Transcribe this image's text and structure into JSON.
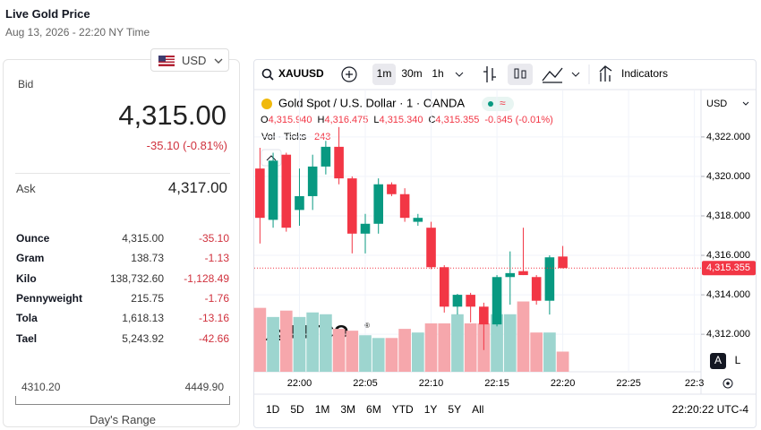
{
  "header": {
    "title": "Live Gold Price",
    "timestamp": "Aug 13, 2026 - 22:20 NY Time"
  },
  "currency": "USD",
  "bid": {
    "label": "Bid",
    "value": "4,315.00",
    "change": "-35.10 (-0.81%)"
  },
  "ask": {
    "label": "Ask",
    "value": "4,317.00"
  },
  "units": {
    "rows": [
      [
        "Ounce",
        "4,315.00",
        "-35.10"
      ],
      [
        "Gram",
        "138.73",
        "-1.13"
      ],
      [
        "Kilo",
        "138,732.60",
        "-1,128.49"
      ],
      [
        "Pennyweight",
        "215.75",
        "-1.76"
      ],
      [
        "Tola",
        "1,618.13",
        "-13.16"
      ],
      [
        "Tael",
        "5,243.92",
        "-42.66"
      ]
    ]
  },
  "range": {
    "low": "4310.20",
    "high": "4449.90",
    "label": "Day's Range"
  },
  "toolbar": {
    "symbol": "XAUUSD",
    "intervals": [
      "1m",
      "30m",
      "1h"
    ],
    "indicators": "Indicators"
  },
  "legend": {
    "title": "Gold Spot / U.S. Dollar · 1 · OANDA",
    "ohlc": [
      {
        "key": "O",
        "value": "4,315.940"
      },
      {
        "key": "H",
        "value": "4,316.475"
      },
      {
        "key": "L",
        "value": "4,315.340"
      },
      {
        "key": "C",
        "value": "4,315.355"
      }
    ],
    "change": "-0.645 (-0.01%)",
    "volume_label": "Vol · Ticks",
    "volume_value": "243"
  },
  "price_unit": "USD",
  "logo": "KITCO",
  "logo_mark": "®",
  "scale_buttons": [
    "A",
    "L"
  ],
  "chart_data": {
    "type": "candlestick",
    "categories": [
      null,
      null,
      null,
      "22:00",
      null,
      null,
      null,
      null,
      "22:05",
      null,
      null,
      null,
      null,
      "22:10",
      null,
      null,
      null,
      null,
      "22:15",
      null,
      null,
      null,
      null,
      "22:20",
      null,
      null,
      null,
      null,
      "22:25",
      null,
      null,
      null,
      null,
      "22:3"
    ],
    "open": [
      4320.4,
      4317.8,
      4321.1,
      4318.3,
      4319.0,
      4320.5,
      4321.5,
      4319.9,
      4317.1,
      4317.6,
      4319.6,
      4319.1,
      4317.7,
      4317.4,
      4315.4,
      4313.4,
      4314.0,
      4313.4,
      4312.5,
      4314.9,
      4315.2,
      4314.9,
      4313.7,
      4315.94,
      null,
      null,
      null,
      null,
      null,
      null,
      null,
      null,
      null,
      null
    ],
    "high": [
      4321.45,
      4321.2,
      4321.2,
      4320.4,
      4321.1,
      4321.8,
      4322.5,
      4320.0,
      4318.1,
      4319.9,
      4319.7,
      4319.4,
      4318.1,
      4317.7,
      4315.5,
      4314.05,
      4314.1,
      4313.6,
      4315.0,
      4316.2,
      4317.4,
      4315.0,
      4316.0,
      4316.475,
      null,
      null,
      null,
      null,
      null,
      null,
      null,
      null,
      null,
      null
    ],
    "low": [
      4316.6,
      4317.4,
      4317.2,
      4317.5,
      4318.3,
      4320.1,
      4319.6,
      4316.1,
      4316.1,
      4317.1,
      4319.0,
      4317.7,
      4317.5,
      4315.3,
      4313.1,
      4313.0,
      4312.6,
      4311.2,
      4312.4,
      4313.5,
      4315.0,
      4313.5,
      4313.0,
      4315.34,
      null,
      null,
      null,
      null,
      null,
      null,
      null,
      null,
      null,
      null
    ],
    "close": [
      4317.9,
      4320.8,
      4317.4,
      4319.0,
      4320.5,
      4321.5,
      4319.9,
      4317.1,
      4317.6,
      4319.6,
      4319.1,
      4317.9,
      4317.9,
      4315.4,
      4313.4,
      4314.0,
      4313.4,
      4312.5,
      4314.9,
      4315.1,
      4315.0,
      4313.7,
      4315.9,
      4315.355,
      null,
      null,
      null,
      null,
      null,
      null,
      null,
      null,
      null,
      null
    ],
    "volume": [
      770,
      660,
      737,
      660,
      715,
      693,
      517,
      495,
      440,
      407,
      407,
      517,
      473,
      583,
      583,
      693,
      583,
      583,
      693,
      693,
      847,
      473,
      473,
      243,
      null,
      null,
      null,
      null,
      null,
      null,
      null,
      null,
      null,
      null
    ],
    "up_color": "#089981",
    "down_color": "#f23645",
    "volume_up_color": "#9dd5cf",
    "volume_down_color": "#f6a7ac",
    "ylim": [
      4310.1,
      4324.4
    ],
    "yticks": [
      {
        "value": 4312,
        "label": "4,312.000"
      },
      {
        "value": 4314,
        "label": "4,314.000"
      },
      {
        "value": 4316,
        "label": "4,316.000"
      },
      {
        "value": 4318,
        "label": "4,318.000"
      },
      {
        "value": 4320,
        "label": "4,320.000"
      },
      {
        "value": 4322,
        "label": "4,322.000"
      }
    ],
    "vlim": [
      0,
      3400
    ],
    "last_price": {
      "value": 4315.355,
      "label": "4,315.355"
    },
    "grid": true
  },
  "footer": {
    "periods": [
      "1D",
      "5D",
      "1M",
      "3M",
      "6M",
      "YTD",
      "1Y",
      "5Y",
      "All"
    ],
    "clock": "22:20:22 UTC-4"
  }
}
